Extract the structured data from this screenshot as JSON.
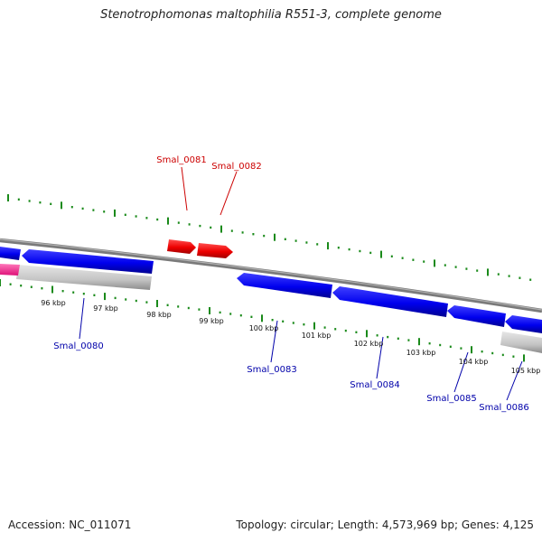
{
  "title": "Stenotrophomonas maltophilia R551-3, complete genome",
  "footer": {
    "accession": "Accession: NC_011071",
    "summary": "Topology: circular; Length: 4,573,969 bp; Genes: 4,125"
  },
  "colors": {
    "forward_gene": "#ff0000",
    "reverse_gene": "#0000ff",
    "forward_label": "#cc0000",
    "reverse_label": "#0000aa",
    "ticks": "#1a8a1a",
    "backbone": "#888888"
  },
  "scale_ticks": [
    "96 kbp",
    "97 kbp",
    "98 kbp",
    "99 kbp",
    "100 kbp",
    "101 kbp",
    "102 kbp",
    "103 kbp",
    "104 kbp",
    "105 kbp"
  ],
  "forward_genes": [
    "Smal_0081",
    "Smal_0082"
  ],
  "reverse_genes": [
    "Smal_0080",
    "Smal_0083",
    "Smal_0084",
    "Smal_0085",
    "Smal_0086"
  ]
}
